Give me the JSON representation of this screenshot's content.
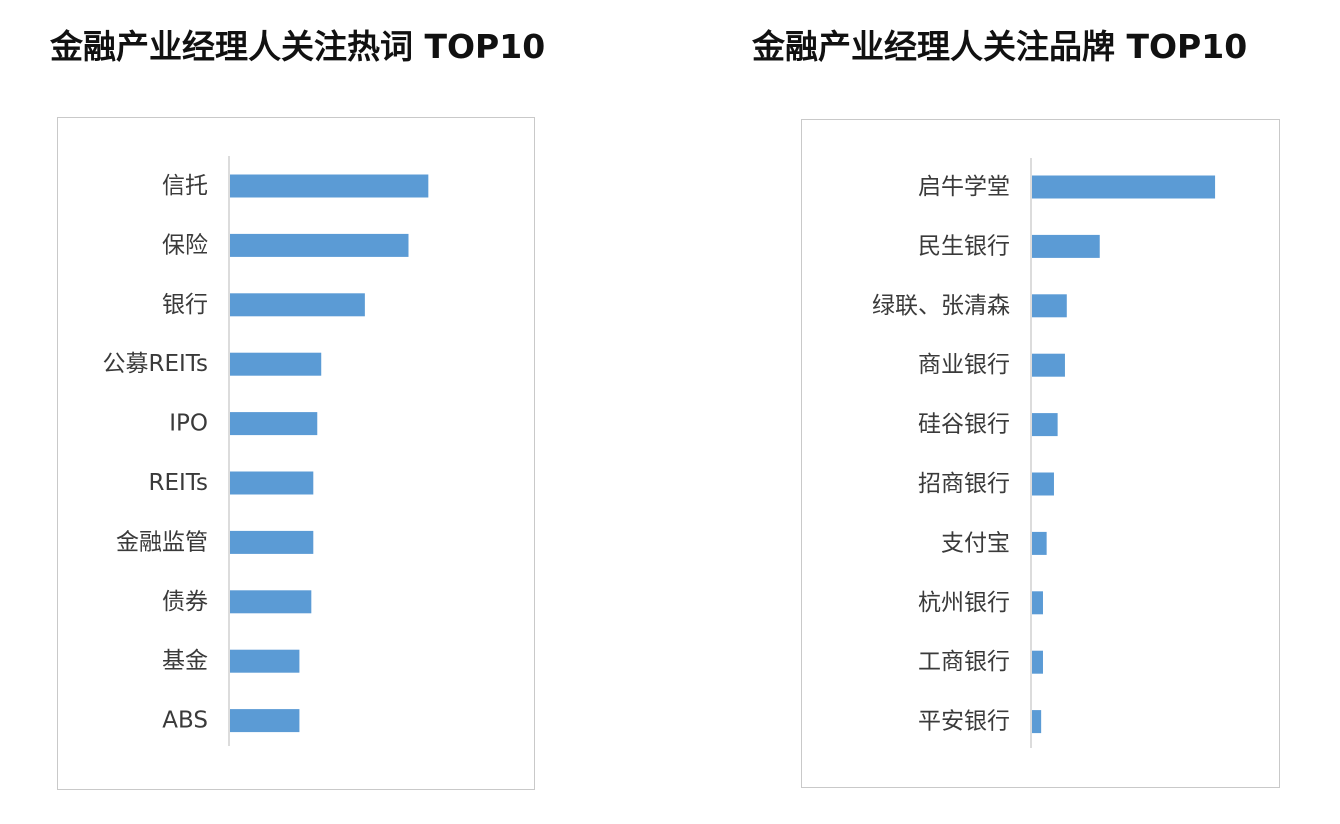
{
  "titles": {
    "left": "金融产业经理人关注热词 TOP10",
    "right": "金融产业经理人关注品牌 TOP10"
  },
  "colors": {
    "bar": "#5b9bd5",
    "axis": "#d0d0d0",
    "border": "#c9c9c9"
  },
  "chart_data": [
    {
      "type": "bar",
      "orientation": "horizontal",
      "title": "金融产业经理人关注热词 TOP10",
      "xlabel": "",
      "ylabel": "",
      "grid": false,
      "categories": [
        "信托",
        "保险",
        "银行",
        "公募REITs",
        "IPO",
        "REITs",
        "金融监管",
        "债券",
        "基金",
        "ABS"
      ],
      "values": [
        100,
        90,
        68,
        46,
        44,
        42,
        42,
        41,
        35,
        35
      ],
      "xlim": [
        0,
        120
      ]
    },
    {
      "type": "bar",
      "orientation": "horizontal",
      "title": "金融产业经理人关注品牌 TOP10",
      "xlabel": "",
      "ylabel": "",
      "grid": false,
      "categories": [
        "启牛学堂",
        "民生银行",
        "绿联、张清森",
        "商业银行",
        "硅谷银行",
        "招商银行",
        "支付宝",
        "杭州银行",
        "工商银行",
        "平安银行"
      ],
      "values": [
        100,
        37,
        19,
        18,
        14,
        12,
        8,
        6,
        6,
        5
      ],
      "xlim": [
        0,
        130
      ]
    }
  ]
}
